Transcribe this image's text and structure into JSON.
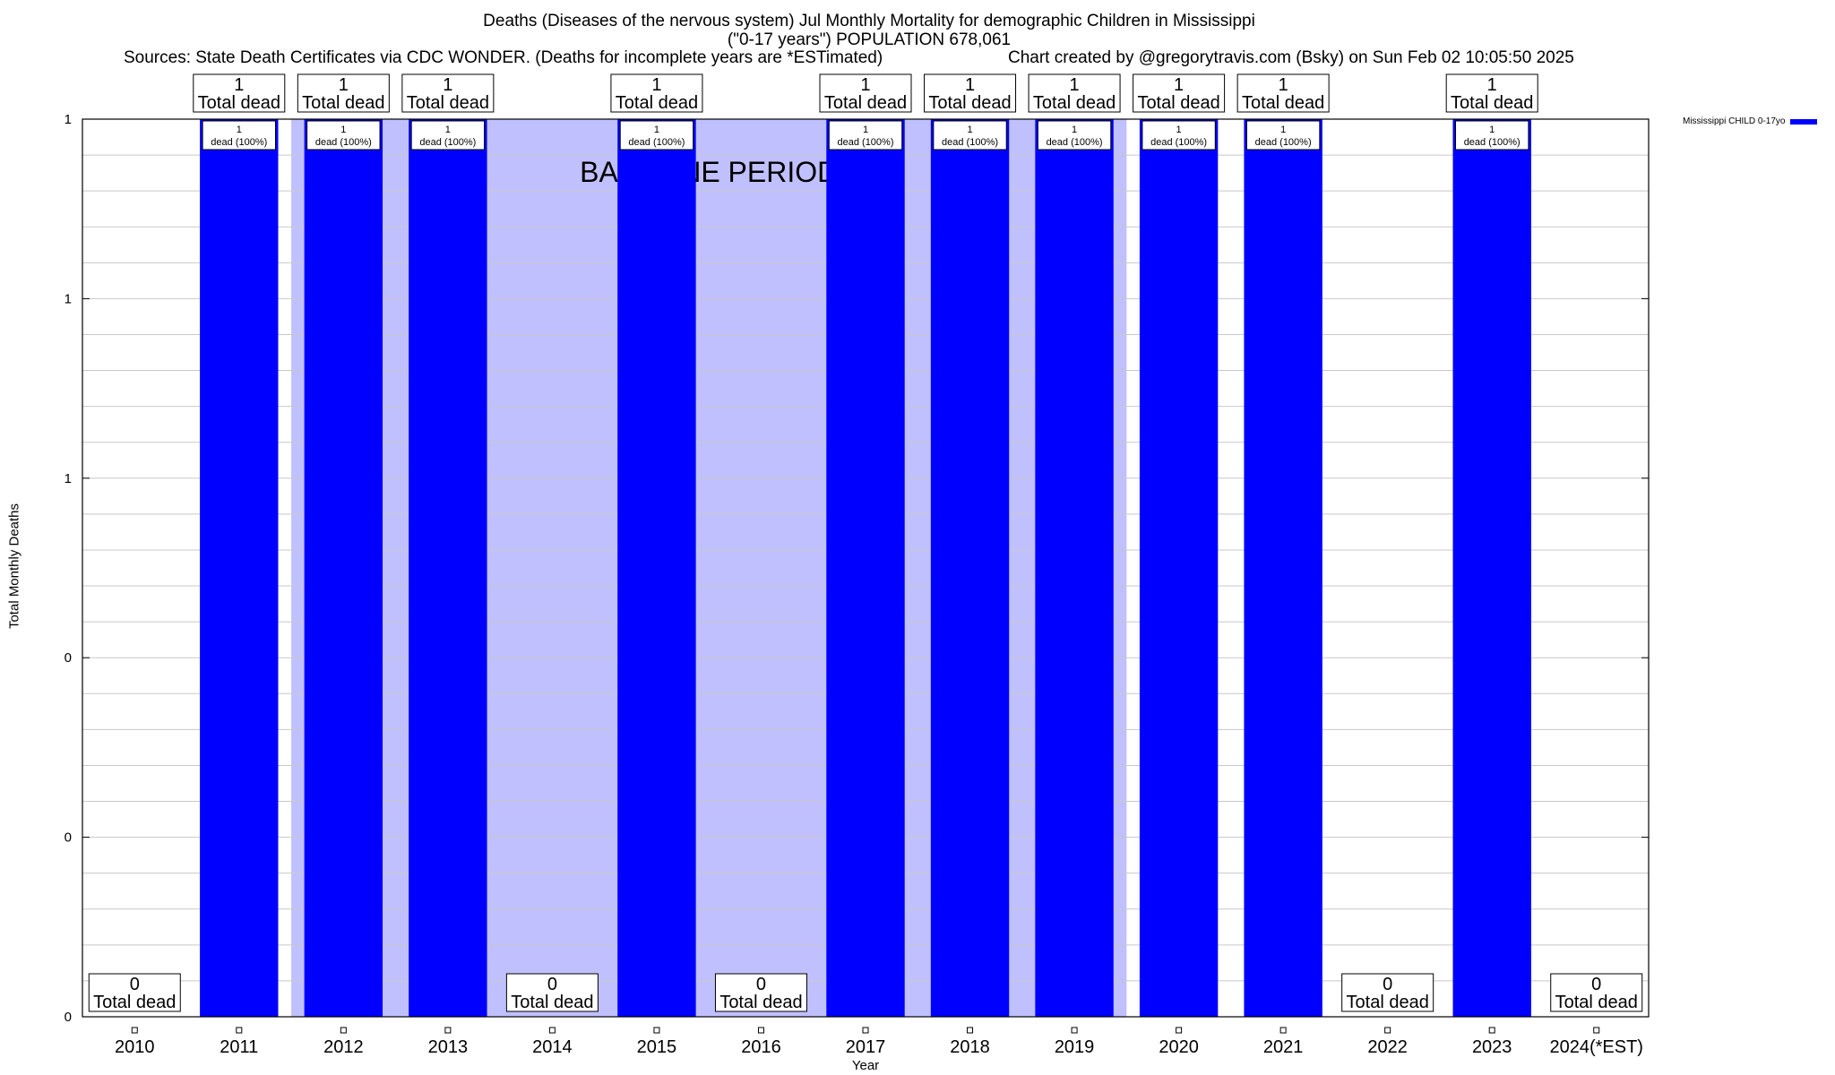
{
  "chart_data": {
    "type": "bar",
    "title": "Deaths (Diseases of the nervous system) Jul Monthly Mortality for demographic Children in Mississippi",
    "subtitle": "(\"0-17 years\") POPULATION 678,061",
    "sources": "Sources: State Death Certificates via CDC WONDER. (Deaths for incomplete years are *ESTimated)",
    "credit": "Chart created by @gregorytravis.com (Bsky) on Sun Feb 02 10:05:50 2025",
    "xlabel": "Year",
    "ylabel": "Total Monthly Deaths",
    "categories": [
      "2010",
      "2011",
      "2012",
      "2013",
      "2014",
      "2015",
      "2016",
      "2017",
      "2018",
      "2019",
      "2020",
      "2021",
      "2022",
      "2023",
      "2024(*EST)"
    ],
    "series": [
      {
        "name": "Mississippi CHILD 0-17yo",
        "values": [
          0,
          1,
          1,
          1,
          0,
          1,
          0,
          1,
          1,
          1,
          1,
          1,
          0,
          1,
          0
        ]
      }
    ],
    "ylim": [
      0,
      1
    ],
    "ytick_values": [
      0,
      0.2,
      0.4,
      0.6,
      0.8,
      1
    ],
    "ytick_labels": [
      "0",
      "0",
      "0",
      "1",
      "1",
      "1"
    ],
    "total_label": "Total dead",
    "bar_label": "dead (100%)",
    "baseline_label": "BASELINE PERIOD",
    "baseline_range": [
      "2012",
      "2019"
    ],
    "grid": true,
    "legend_position": "top-right",
    "colors": {
      "bar": "#0000ff",
      "baseline": "#c0c0ff",
      "grid": "#c8c8c8"
    }
  }
}
